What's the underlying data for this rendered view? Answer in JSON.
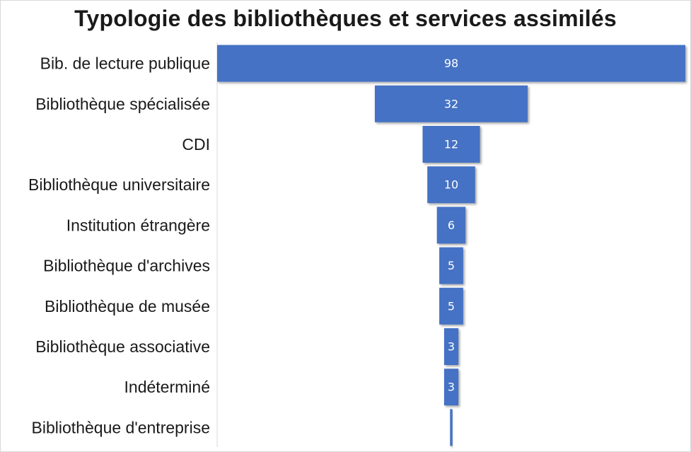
{
  "chart_data": {
    "type": "bar",
    "orientation": "horizontal",
    "style": "funnel",
    "title": "Typologie des bibliothèques et services assimilés",
    "categories": [
      "Bib. de lecture publique",
      "Bibliothèque spécialisée",
      "CDI",
      "Bibliothèque universitaire",
      "Institution étrangère",
      "Bibliothèque d'archives",
      "Bibliothèque de musée",
      "Bibliothèque associative",
      "Indéterminé",
      "Bibliothèque d'entreprise"
    ],
    "values": [
      98,
      32,
      12,
      10,
      6,
      5,
      5,
      3,
      3,
      0.5
    ],
    "data_labels": [
      "98",
      "32",
      "12",
      "10",
      "6",
      "5",
      "5",
      "3",
      "3",
      ""
    ],
    "bar_color": "#4472c4",
    "label_color": "#ffffff",
    "grid": false,
    "legend": "none"
  }
}
